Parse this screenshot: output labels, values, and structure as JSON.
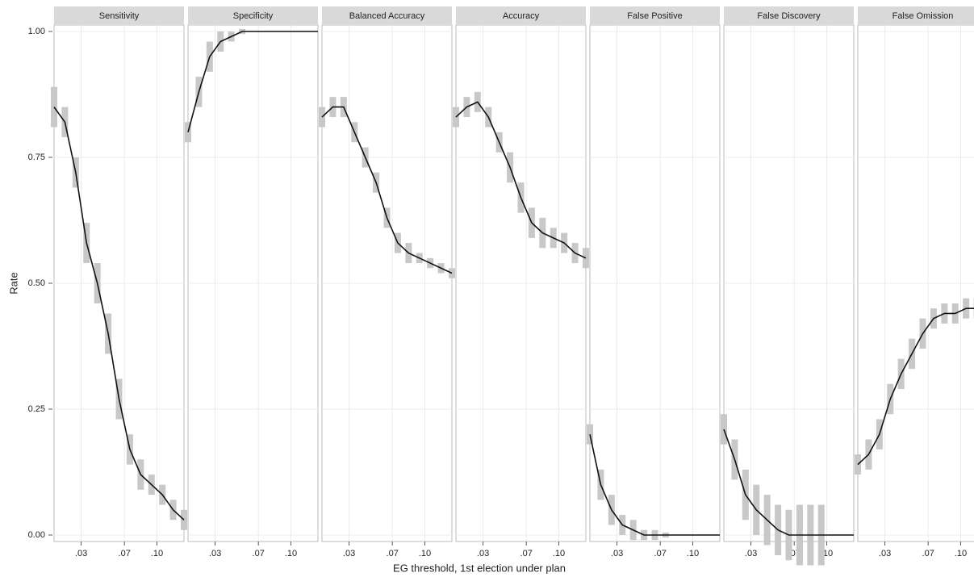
{
  "chart_data": {
    "type": "line",
    "ylabel": "Rate",
    "xlabel": "EG threshold, 1st election under plan",
    "ylim": [
      0,
      1
    ],
    "yticks": [
      {
        "value": 0,
        "label": "0.00"
      },
      {
        "value": 0.25,
        "label": "0.25"
      },
      {
        "value": 0.5,
        "label": "0.50"
      },
      {
        "value": 0.75,
        "label": "0.75"
      },
      {
        "value": 1,
        "label": "1.00"
      }
    ],
    "xlim": [
      0.005,
      0.125
    ],
    "xticks": [
      {
        "value": 0.03,
        "label": ".03"
      },
      {
        "value": 0.07,
        "label": ".07"
      },
      {
        "value": 0.1,
        "label": ".10"
      }
    ],
    "x": [
      0.005,
      0.015,
      0.025,
      0.035,
      0.045,
      0.055,
      0.065,
      0.075,
      0.085,
      0.095,
      0.105,
      0.115,
      0.125
    ],
    "color": "#111111",
    "band_color": "#c8c8c8",
    "grid": true,
    "panels": [
      {
        "title": "Sensitivity",
        "values": [
          0.85,
          0.82,
          0.72,
          0.58,
          0.5,
          0.4,
          0.27,
          0.17,
          0.12,
          0.1,
          0.08,
          0.05,
          0.03
        ],
        "error": [
          0.04,
          0.03,
          0.03,
          0.04,
          0.04,
          0.04,
          0.04,
          0.03,
          0.03,
          0.02,
          0.02,
          0.02,
          0.02
        ]
      },
      {
        "title": "Specificity",
        "values": [
          0.8,
          0.88,
          0.95,
          0.98,
          0.99,
          1.0,
          1.0,
          1.0,
          1.0,
          1.0,
          1.0,
          1.0,
          1.0
        ],
        "error": [
          0.02,
          0.03,
          0.03,
          0.02,
          0.01,
          0.005,
          0,
          0,
          0,
          0,
          0,
          0,
          0
        ]
      },
      {
        "title": "Balanced Accuracy",
        "values": [
          0.83,
          0.85,
          0.85,
          0.8,
          0.75,
          0.7,
          0.63,
          0.58,
          0.56,
          0.55,
          0.54,
          0.53,
          0.52
        ],
        "error": [
          0.02,
          0.02,
          0.02,
          0.02,
          0.02,
          0.02,
          0.02,
          0.02,
          0.02,
          0.01,
          0.01,
          0.01,
          0.01
        ]
      },
      {
        "title": "Accuracy",
        "values": [
          0.83,
          0.85,
          0.86,
          0.83,
          0.78,
          0.73,
          0.67,
          0.62,
          0.6,
          0.59,
          0.58,
          0.56,
          0.55
        ],
        "error": [
          0.02,
          0.02,
          0.02,
          0.02,
          0.02,
          0.03,
          0.03,
          0.03,
          0.03,
          0.02,
          0.02,
          0.02,
          0.02
        ]
      },
      {
        "title": "False Positive",
        "values": [
          0.2,
          0.1,
          0.05,
          0.02,
          0.01,
          0,
          0,
          0,
          0,
          0,
          0,
          0,
          0
        ],
        "error": [
          0.02,
          0.03,
          0.03,
          0.02,
          0.02,
          0.01,
          0.01,
          0.005,
          0,
          0,
          0,
          0,
          0
        ]
      },
      {
        "title": "False Discovery",
        "values": [
          0.21,
          0.15,
          0.08,
          0.05,
          0.03,
          0.01,
          0,
          0,
          0,
          0,
          0,
          0,
          0
        ],
        "error": [
          0.03,
          0.04,
          0.05,
          0.05,
          0.05,
          0.05,
          0.05,
          0.06,
          0.06,
          0.06,
          0,
          0,
          0
        ]
      },
      {
        "title": "False Omission",
        "values": [
          0.14,
          0.16,
          0.2,
          0.27,
          0.32,
          0.36,
          0.4,
          0.43,
          0.44,
          0.44,
          0.45,
          0.45,
          0.46
        ],
        "error": [
          0.02,
          0.03,
          0.03,
          0.03,
          0.03,
          0.03,
          0.03,
          0.02,
          0.02,
          0.02,
          0.02,
          0.02,
          0.02
        ]
      }
    ]
  }
}
